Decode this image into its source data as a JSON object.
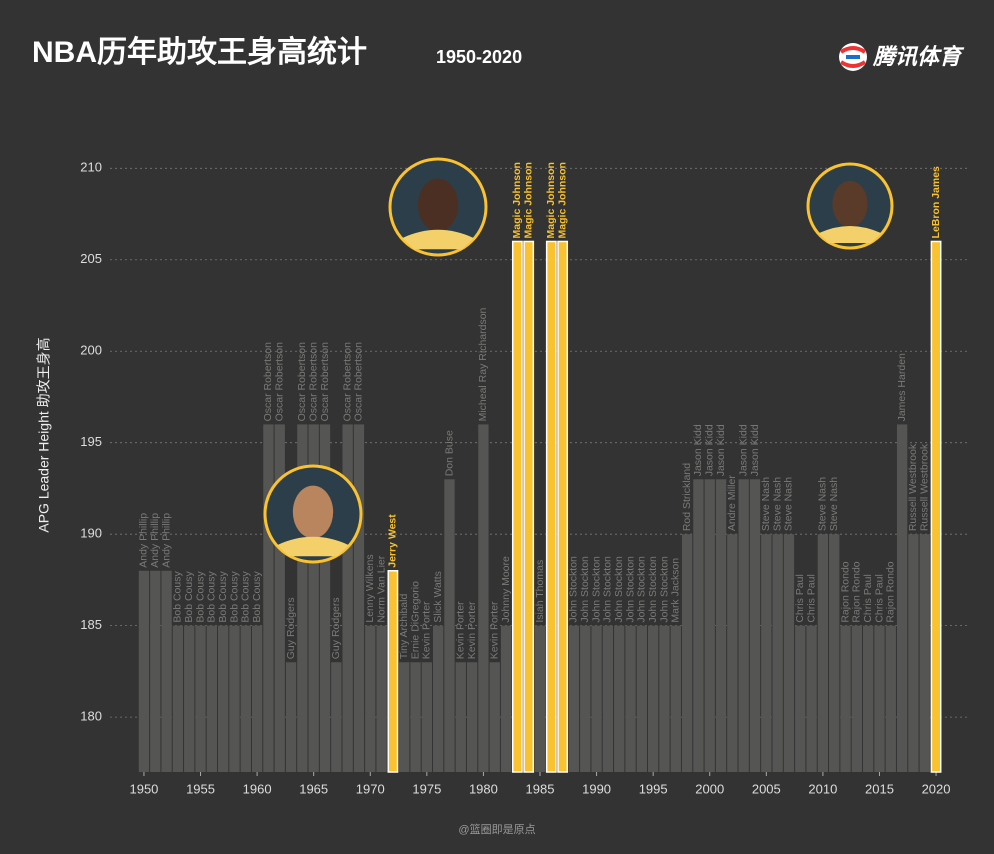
{
  "chart_data": {
    "type": "bar",
    "title": "NBA历年助攻王身高统计",
    "subtitle": "1950-2020",
    "brand": "腾讯体育",
    "source": "@篮圈即是原点",
    "y_label": "APG Leader Height 助攻王身高",
    "x": [
      1950,
      1951,
      1952,
      1953,
      1954,
      1955,
      1956,
      1957,
      1958,
      1959,
      1960,
      1961,
      1962,
      1963,
      1964,
      1965,
      1966,
      1967,
      1968,
      1969,
      1970,
      1971,
      1972,
      1973,
      1974,
      1975,
      1976,
      1977,
      1978,
      1979,
      1980,
      1981,
      1982,
      1983,
      1984,
      1985,
      1986,
      1987,
      1988,
      1989,
      1990,
      1991,
      1992,
      1993,
      1994,
      1995,
      1996,
      1997,
      1998,
      1999,
      2000,
      2001,
      2002,
      2003,
      2004,
      2005,
      2006,
      2007,
      2008,
      2009,
      2010,
      2011,
      2012,
      2013,
      2014,
      2015,
      2016,
      2017,
      2018,
      2019,
      2020
    ],
    "values": [
      188,
      188,
      188,
      185,
      185,
      185,
      185,
      185,
      185,
      185,
      185,
      196,
      196,
      183,
      196,
      196,
      196,
      183,
      196,
      196,
      185,
      185,
      188,
      183,
      183,
      183,
      185,
      193,
      183,
      183,
      196,
      183,
      185,
      206,
      206,
      185,
      206,
      206,
      185,
      185,
      185,
      185,
      185,
      185,
      185,
      185,
      185,
      185,
      190,
      193,
      193,
      193,
      190,
      193,
      193,
      190,
      190,
      190,
      185,
      185,
      190,
      190,
      185,
      185,
      185,
      185,
      185,
      196,
      190,
      190,
      206
    ],
    "labels": [
      "Andy Phillip",
      "Andy Phillip",
      "Andy Phillip",
      "Bob Cousy",
      "Bob Cousy",
      "Bob Cousy",
      "Bob Cousy",
      "Bob Cousy",
      "Bob Cousy",
      "Bob Cousy",
      "Bob Cousy",
      "Oscar Robertson",
      "Oscar Robertson",
      "Guy Rodgers",
      "Oscar Robertson",
      "Oscar Robertson",
      "Oscar Robertson",
      "Guy Rodgers",
      "Oscar Robertson",
      "Oscar Robertson",
      "Lenny Wilkens",
      "Norm Van Lier",
      "Jerry West",
      "Tiny Archibald",
      "Ernie DiGregorio",
      "Kevin Porter",
      "Slick Watts",
      "Don Buse",
      "Kevin Porter",
      "Kevin Porter",
      "Micheal Ray Richardson",
      "Kevin Porter",
      "Johnny Moore",
      "Magic Johnson",
      "Magic Johnson",
      "Isiah Thomas",
      "Magic Johnson",
      "Magic Johnson",
      "John Stockton",
      "John Stockton",
      "John Stockton",
      "John Stockton",
      "John Stockton",
      "John Stockton",
      "John Stockton",
      "John Stockton",
      "John Stockton",
      "Mark Jackson",
      "Rod Strickland",
      "Jason Kidd",
      "Jason Kidd",
      "Jason Kidd",
      "Andre Miller",
      "Jason Kidd",
      "Jason Kidd",
      "Steve Nash",
      "Steve Nash",
      "Steve Nash",
      "Chris Paul",
      "Chris Paul",
      "Steve Nash",
      "Steve Nash",
      "Rajon Rondo",
      "Rajon Rondo",
      "Chris Paul",
      "Chris Paul",
      "Rajon Rondo",
      "James Harden",
      "Russell Westbrook",
      "Russell Westbrook",
      "LeBron James"
    ],
    "color": "#555553",
    "highlight_color": "#f9c22e",
    "highlight": [
      1972,
      1983,
      1984,
      1986,
      1987,
      2020
    ],
    "xlim": [
      1947,
      2023
    ],
    "xticks": [
      1950,
      1955,
      1960,
      1965,
      1970,
      1975,
      1980,
      1985,
      1990,
      1995,
      2000,
      2005,
      2010,
      2015,
      2020
    ],
    "ylim": [
      177,
      211
    ],
    "yticks": [
      180,
      185,
      190,
      195,
      200,
      205,
      210
    ],
    "grid": true
  }
}
